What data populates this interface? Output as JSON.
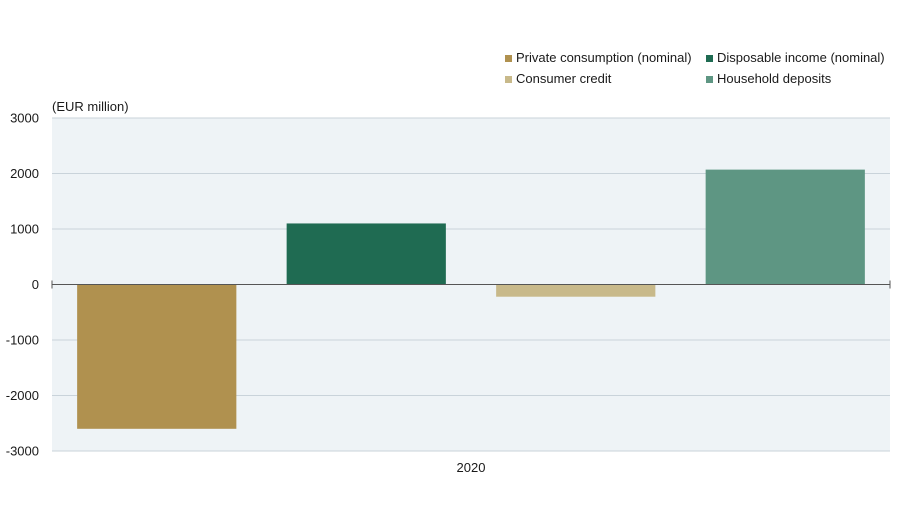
{
  "chart_data": {
    "type": "bar",
    "title": "",
    "unit_label": "(EUR million)",
    "xlabel": "",
    "ylabel": "",
    "categories": [
      "2020"
    ],
    "ylim": [
      -3000,
      3000
    ],
    "yticks": [
      3000,
      2000,
      1000,
      0,
      -1000,
      -2000,
      -3000
    ],
    "grid": true,
    "legend_position": "top-right",
    "series": [
      {
        "name": "Private consumption (nominal)",
        "color": "#b0914f",
        "values": [
          -2600
        ]
      },
      {
        "name": "Disposable income (nominal)",
        "color": "#1f6b52",
        "values": [
          1100
        ]
      },
      {
        "name": "Consumer credit",
        "color": "#c8b98a",
        "values": [
          -220
        ]
      },
      {
        "name": "Household deposits",
        "color": "#5e9683",
        "values": [
          2070
        ]
      }
    ]
  }
}
